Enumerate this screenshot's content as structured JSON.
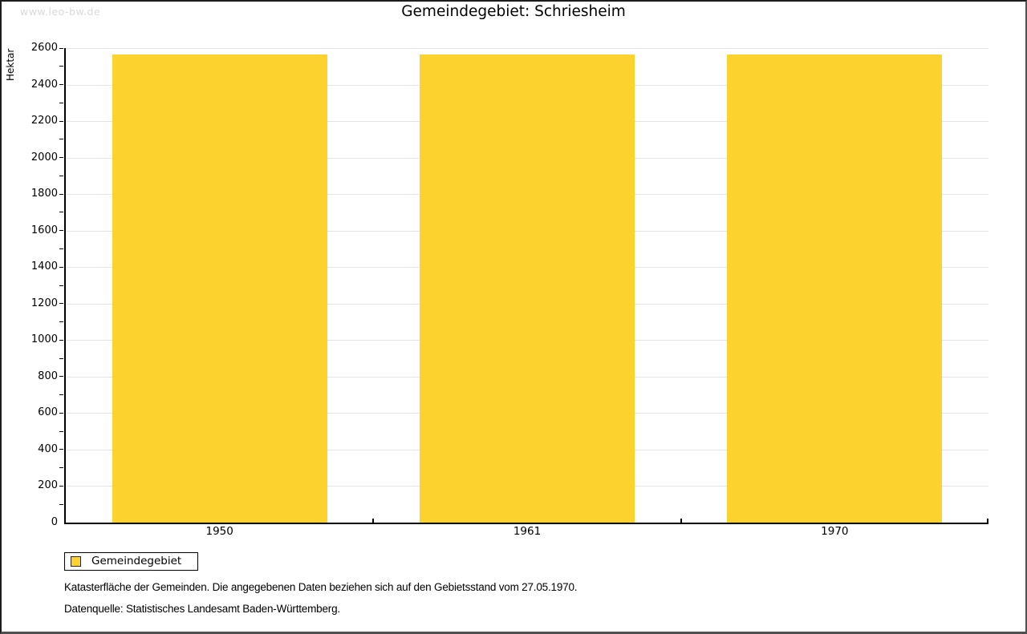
{
  "watermark": "www.leo-bw.de",
  "title": "Gemeindegebiet: Schriesheim",
  "legend": {
    "label": "Gemeindegebiet"
  },
  "footnotes": {
    "line1": "Katasterfläche der Gemeinden. Die angegebenen Daten beziehen sich auf den Gebietsstand vom 27.05.1970.",
    "line2": "Datenquelle: Statistisches Landesamt Baden-Württemberg."
  },
  "colors": {
    "bar": "#fcd32e",
    "grid": "#e4e4e4",
    "axis": "#000000",
    "watermark": "#d9d9d9"
  },
  "chart_data": {
    "type": "bar",
    "categories": [
      "1950",
      "1961",
      "1970"
    ],
    "series": [
      {
        "name": "Gemeindegebiet",
        "values": [
          2565,
          2565,
          2565
        ]
      }
    ],
    "title": "Gemeindegebiet: Schriesheim",
    "xlabel": "",
    "ylabel": "Hektar",
    "ylim": [
      0,
      2600
    ],
    "ytick_major": 200,
    "ytick_minor": 100,
    "grid": "horizontal-major-only",
    "legend_position": "bottom-left",
    "annotations": []
  }
}
